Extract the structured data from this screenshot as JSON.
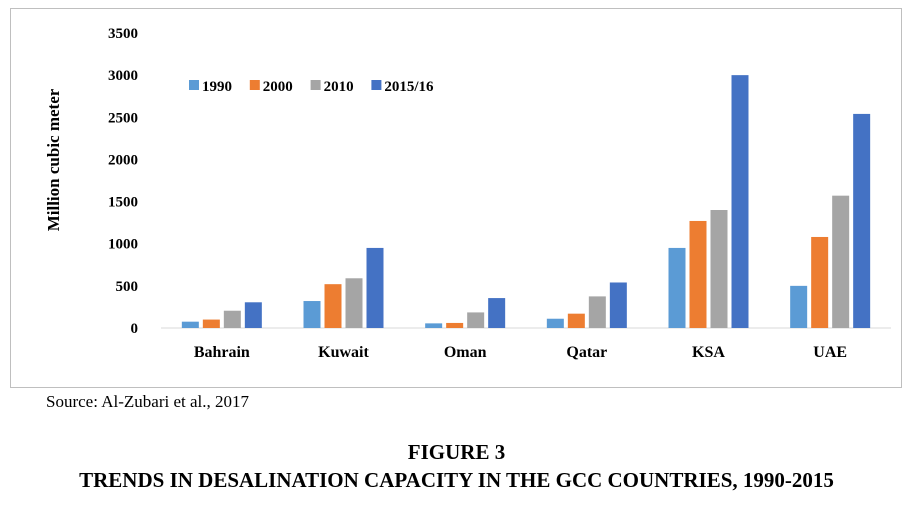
{
  "chart_data": {
    "type": "bar",
    "ylabel": "Million cubic meter",
    "xlabel": "",
    "ylim": [
      0,
      3500
    ],
    "yticks": [
      0,
      500,
      1000,
      1500,
      2000,
      2500,
      3000,
      3500
    ],
    "grid": false,
    "legend_position": "top-left",
    "categories": [
      "Bahrain",
      "Kuwait",
      "Oman",
      "Qatar",
      "KSA",
      "UAE"
    ],
    "series": [
      {
        "name": "1990",
        "color": "#5b9bd5",
        "values": [
          75,
          320,
          55,
          110,
          950,
          500
        ]
      },
      {
        "name": "2000",
        "color": "#ed7d31",
        "values": [
          100,
          520,
          60,
          170,
          1270,
          1080
        ]
      },
      {
        "name": "2010",
        "color": "#a5a5a5",
        "values": [
          205,
          590,
          185,
          375,
          1400,
          1570
        ]
      },
      {
        "name": "2015/16",
        "color": "#4472c4",
        "values": [
          305,
          950,
          355,
          540,
          3000,
          2540
        ]
      }
    ]
  },
  "source": "Source: Al-Zubari et al., 2017",
  "figure": {
    "number": "FIGURE 3",
    "title": "TRENDS IN DESALINATION CAPACITY IN THE GCC COUNTRIES, 1990-2015"
  }
}
